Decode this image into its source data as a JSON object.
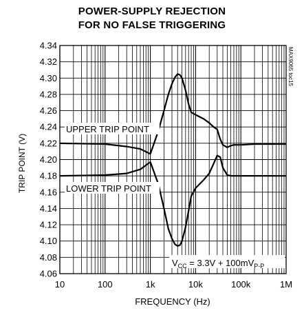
{
  "chart_data": {
    "type": "line",
    "title_line1": "POWER-SUPPLY REJECTION",
    "title_line2": "FOR NO FALSE TRIGGERING",
    "xlabel": "FREQUENCY (Hz)",
    "ylabel": "TRIP POINT (V)",
    "x_scale": "log",
    "xlim": [
      10,
      1000000
    ],
    "ylim": [
      4.06,
      4.34
    ],
    "x_ticks": [
      10,
      100,
      1000,
      10000,
      100000,
      1000000
    ],
    "x_tick_labels": [
      "10",
      "100",
      "1k",
      "10k",
      "100k",
      "1M"
    ],
    "y_ticks": [
      4.06,
      4.08,
      4.1,
      4.12,
      4.14,
      4.16,
      4.18,
      4.2,
      4.22,
      4.24,
      4.26,
      4.28,
      4.3,
      4.32,
      4.34
    ],
    "y_tick_labels": [
      "4.06",
      "4.08",
      "4.10",
      "4.12",
      "4.14",
      "4.16",
      "4.18",
      "4.20",
      "4.22",
      "4.24",
      "4.26",
      "4.28",
      "4.30",
      "4.32",
      "4.34"
    ],
    "grid": true,
    "series": [
      {
        "name": "UPPER TRIP POINT",
        "x": [
          10,
          100,
          300,
          600,
          1000,
          1500,
          2000,
          2500,
          3000,
          3500,
          4000,
          4500,
          5000,
          6000,
          7000,
          8000,
          10000,
          15000,
          20000,
          25000,
          30000,
          35000,
          40000,
          50000,
          60000,
          70000,
          100000,
          200000,
          1000000
        ],
        "y": [
          4.22,
          4.219,
          4.216,
          4.213,
          4.207,
          4.235,
          4.26,
          4.28,
          4.293,
          4.301,
          4.305,
          4.304,
          4.3,
          4.285,
          4.268,
          4.258,
          4.255,
          4.25,
          4.245,
          4.24,
          4.237,
          4.225,
          4.218,
          4.215,
          4.217,
          4.218,
          4.218,
          4.219,
          4.219
        ]
      },
      {
        "name": "LOWER TRIP POINT",
        "x": [
          10,
          100,
          300,
          600,
          1000,
          1500,
          2000,
          2500,
          3000,
          3500,
          4000,
          4500,
          5000,
          6000,
          7000,
          8000,
          10000,
          15000,
          20000,
          25000,
          30000,
          35000,
          40000,
          50000,
          60000,
          70000,
          100000,
          200000,
          1000000
        ],
        "y": [
          4.18,
          4.181,
          4.183,
          4.188,
          4.197,
          4.17,
          4.14,
          4.115,
          4.103,
          4.096,
          4.094,
          4.095,
          4.1,
          4.117,
          4.137,
          4.155,
          4.165,
          4.175,
          4.183,
          4.195,
          4.205,
          4.203,
          4.19,
          4.181,
          4.18,
          4.18,
          4.18,
          4.18,
          4.18
        ]
      }
    ],
    "annotations": {
      "upper_label": "UPPER TRIP POINT",
      "lower_label": "LOWER TRIP POINT",
      "vcc_main": "V",
      "vcc_sub": "CC",
      "vcc_mid": " = 3.3V + 100mV",
      "vcc_sub2": "P-P",
      "side_code": "MAX9065 toc15"
    }
  }
}
